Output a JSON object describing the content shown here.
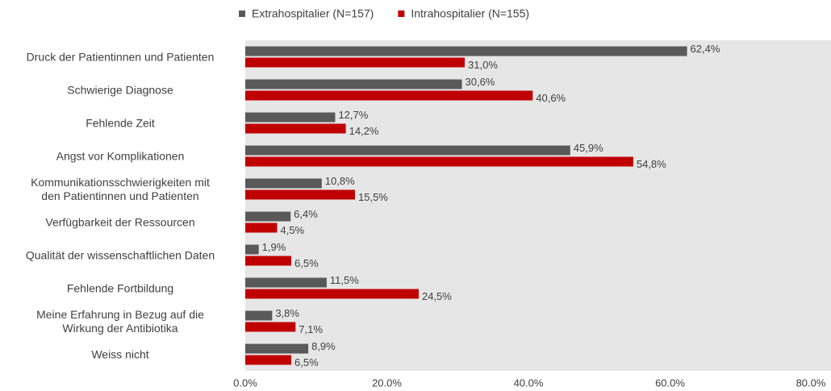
{
  "chart_data": {
    "type": "hbar",
    "categories": [
      "Druck der Patientinnen und Patienten",
      "Schwierige Diagnose",
      "Fehlende Zeit",
      "Angst vor Komplikationen",
      "Kommunikationsschwierigkeiten mit\nden Patientinnen und Patienten",
      "Verfügbarkeit der Ressourcen",
      "Qualität der wissenschaftlichen Daten",
      "Fehlende Fortbildung",
      "Meine Erfahrung in Bezug auf die\nWirkung der Antibiotika",
      "Weiss nicht"
    ],
    "series": [
      {
        "name": "Extrahospitalier (N=157)",
        "color": "#595959",
        "values": [
          62.4,
          30.6,
          12.7,
          45.9,
          10.8,
          6.4,
          1.9,
          11.5,
          3.8,
          8.9
        ],
        "value_labels": [
          "62,4%",
          "30,6%",
          "12,7%",
          "45,9%",
          "10,8%",
          "6,4%",
          "1,9%",
          "11,5%",
          "3,8%",
          "8,9%"
        ]
      },
      {
        "name": "Intrahospitalier (N=155)",
        "color": "#c00000",
        "values": [
          31.0,
          40.6,
          14.2,
          54.8,
          15.5,
          4.5,
          6.5,
          24.5,
          7.1,
          6.5
        ],
        "value_labels": [
          "31,0%",
          "40,6%",
          "14,2%",
          "54,8%",
          "15,5%",
          "4,5%",
          "6,5%",
          "24,5%",
          "7,1%",
          "6,5%"
        ]
      }
    ],
    "xlim": [
      0,
      80
    ],
    "xticks": [
      {
        "value": 0,
        "label": "0.0%"
      },
      {
        "value": 20,
        "label": "20.0%"
      },
      {
        "value": 40,
        "label": "40.0%"
      },
      {
        "value": 60,
        "label": "60.0%"
      },
      {
        "value": 80,
        "label": "80.0%"
      }
    ],
    "legend": "top"
  }
}
